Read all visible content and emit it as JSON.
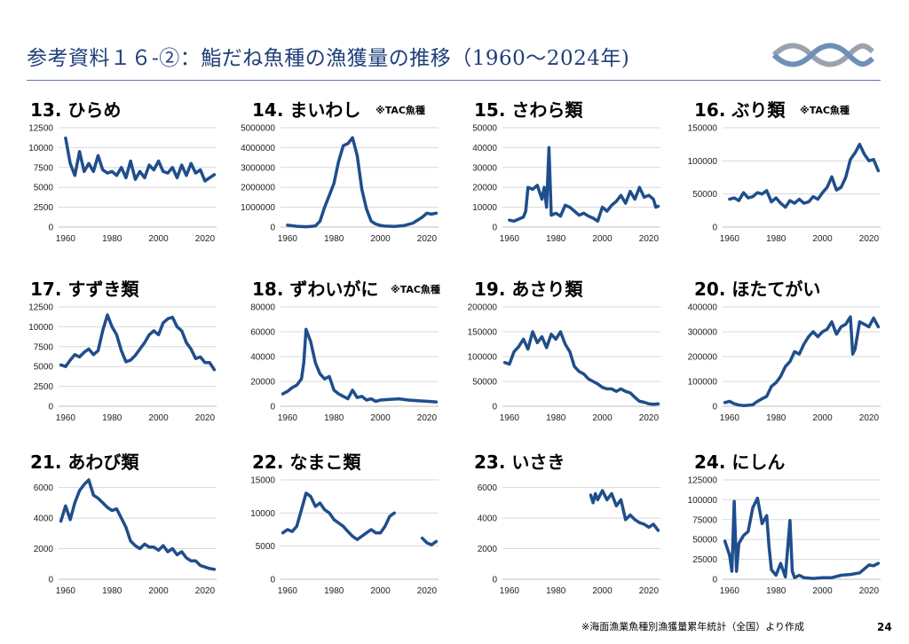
{
  "header": {
    "title": "参考資料１６-②：鮨だね魚種の漁獲量の推移（1960～2024年)",
    "logo": "wave-logo-icon"
  },
  "colors": {
    "line": "#1f4e8c",
    "title": "#1f3f7a",
    "grid": "#d9d9d9"
  },
  "footer": {
    "source": "※海面漁業魚種別漁獲量累年統計（全国）より作成",
    "page": "24"
  },
  "chart_data": [
    {
      "id": "p13",
      "type": "line",
      "title": "13. ひらめ",
      "note": "",
      "xlim": [
        1957,
        2025
      ],
      "ylim": [
        0,
        12500
      ],
      "yticks": [
        0,
        2500,
        5000,
        7500,
        10000,
        12500
      ],
      "xticks": [
        1960,
        1980,
        2000,
        2020
      ],
      "x": [
        1960,
        1962,
        1964,
        1966,
        1968,
        1970,
        1972,
        1974,
        1976,
        1978,
        1980,
        1982,
        1984,
        1986,
        1988,
        1990,
        1992,
        1994,
        1996,
        1998,
        2000,
        2002,
        2004,
        2006,
        2008,
        2010,
        2012,
        2014,
        2016,
        2018,
        2020,
        2022,
        2024
      ],
      "y": [
        11200,
        8000,
        6500,
        9500,
        7000,
        8000,
        7000,
        9000,
        7200,
        6800,
        7000,
        6500,
        7500,
        6200,
        8300,
        6000,
        7000,
        6200,
        7800,
        7200,
        8300,
        7000,
        6800,
        7500,
        6200,
        7800,
        6500,
        8000,
        6800,
        7200,
        5800,
        6200,
        6600
      ]
    },
    {
      "id": "p14",
      "type": "line",
      "title": "14. まいわし",
      "note": "※TAC魚種",
      "xlim": [
        1957,
        2025
      ],
      "ylim": [
        0,
        5000000
      ],
      "yticks": [
        0,
        1000000,
        2000000,
        3000000,
        4000000,
        5000000
      ],
      "xticks": [
        1960,
        1980,
        2000,
        2020
      ],
      "x": [
        1960,
        1964,
        1968,
        1970,
        1972,
        1974,
        1976,
        1978,
        1980,
        1982,
        1984,
        1986,
        1988,
        1990,
        1992,
        1994,
        1996,
        1998,
        2000,
        2002,
        2006,
        2010,
        2014,
        2018,
        2020,
        2022,
        2024
      ],
      "y": [
        100000,
        40000,
        20000,
        30000,
        60000,
        300000,
        1000000,
        1600000,
        2200000,
        3300000,
        4100000,
        4200000,
        4500000,
        3600000,
        1900000,
        900000,
        300000,
        150000,
        80000,
        50000,
        30000,
        70000,
        200000,
        500000,
        700000,
        650000,
        700000
      ]
    },
    {
      "id": "p15",
      "type": "line",
      "title": "15. さわら類",
      "note": "",
      "xlim": [
        1957,
        2025
      ],
      "ylim": [
        0,
        50000
      ],
      "yticks": [
        0,
        10000,
        20000,
        30000,
        40000,
        50000
      ],
      "xticks": [
        1960,
        1980,
        2000,
        2020
      ],
      "x": [
        1960,
        1962,
        1964,
        1966,
        1967,
        1968,
        1970,
        1972,
        1974,
        1975,
        1976,
        1977,
        1978,
        1980,
        1982,
        1984,
        1986,
        1988,
        1990,
        1992,
        1994,
        1996,
        1998,
        2000,
        2002,
        2004,
        2006,
        2008,
        2010,
        2012,
        2014,
        2016,
        2018,
        2020,
        2022,
        2023,
        2024
      ],
      "y": [
        3500,
        3000,
        4000,
        5000,
        8000,
        20000,
        19000,
        21000,
        14000,
        20000,
        10000,
        40000,
        6000,
        7000,
        5500,
        11000,
        10000,
        8000,
        6000,
        7000,
        5500,
        4500,
        3000,
        10000,
        8000,
        11000,
        13000,
        16000,
        12000,
        18000,
        14000,
        20000,
        15000,
        16000,
        14000,
        10000,
        10500
      ]
    },
    {
      "id": "p16",
      "type": "line",
      "title": "16. ぶり類",
      "note": "※TAC魚種",
      "xlim": [
        1957,
        2025
      ],
      "ylim": [
        0,
        150000
      ],
      "yticks": [
        0,
        50000,
        100000,
        150000
      ],
      "xticks": [
        1960,
        1980,
        2000,
        2020
      ],
      "x": [
        1960,
        1962,
        1964,
        1966,
        1968,
        1970,
        1972,
        1974,
        1976,
        1978,
        1980,
        1982,
        1984,
        1986,
        1988,
        1990,
        1992,
        1994,
        1996,
        1998,
        2000,
        2002,
        2004,
        2006,
        2008,
        2010,
        2012,
        2014,
        2016,
        2018,
        2020,
        2022,
        2024
      ],
      "y": [
        42000,
        44000,
        40000,
        52000,
        44000,
        46000,
        52000,
        50000,
        55000,
        38000,
        44000,
        36000,
        30000,
        40000,
        36000,
        42000,
        36000,
        38000,
        46000,
        42000,
        52000,
        60000,
        76000,
        56000,
        60000,
        75000,
        102000,
        112000,
        125000,
        110000,
        100000,
        102000,
        85000
      ]
    },
    {
      "id": "p17",
      "type": "line",
      "title": "17. すずき類",
      "note": "",
      "xlim": [
        1957,
        2025
      ],
      "ylim": [
        0,
        12500
      ],
      "yticks": [
        0,
        2500,
        5000,
        7500,
        10000,
        12500
      ],
      "xticks": [
        1960,
        1980,
        2000,
        2020
      ],
      "x": [
        1958,
        1960,
        1962,
        1964,
        1966,
        1968,
        1970,
        1972,
        1974,
        1976,
        1978,
        1980,
        1982,
        1984,
        1986,
        1988,
        1990,
        1992,
        1994,
        1996,
        1998,
        2000,
        2002,
        2004,
        2006,
        2008,
        2010,
        2012,
        2014,
        2016,
        2018,
        2020,
        2022,
        2024
      ],
      "y": [
        5200,
        5000,
        5800,
        6500,
        6200,
        6800,
        7200,
        6500,
        7000,
        9500,
        11500,
        10000,
        9000,
        7000,
        5600,
        5800,
        6400,
        7200,
        8000,
        9000,
        9500,
        9000,
        10500,
        11000,
        11200,
        10000,
        9500,
        8000,
        7200,
        6000,
        6200,
        5500,
        5500,
        4600
      ]
    },
    {
      "id": "p18",
      "type": "line",
      "title": "18. ずわいがに",
      "note": "※TAC魚種",
      "xlim": [
        1957,
        2025
      ],
      "ylim": [
        0,
        80000
      ],
      "yticks": [
        0,
        20000,
        40000,
        60000,
        80000
      ],
      "xticks": [
        1960,
        1980,
        2000,
        2020
      ],
      "x": [
        1958,
        1960,
        1962,
        1964,
        1966,
        1967,
        1968,
        1970,
        1972,
        1974,
        1976,
        1978,
        1980,
        1982,
        1984,
        1986,
        1988,
        1990,
        1992,
        1994,
        1996,
        1998,
        2000,
        2004,
        2008,
        2012,
        2016,
        2020,
        2024
      ],
      "y": [
        10000,
        12000,
        15000,
        17000,
        22000,
        35000,
        62000,
        52000,
        35000,
        26000,
        22000,
        24000,
        13000,
        10000,
        8000,
        6000,
        13000,
        7000,
        8000,
        5000,
        6000,
        4000,
        5000,
        5500,
        6000,
        5000,
        4500,
        4000,
        3500
      ]
    },
    {
      "id": "p19",
      "type": "line",
      "title": "19. あさり類",
      "note": "",
      "xlim": [
        1957,
        2025
      ],
      "ylim": [
        0,
        200000
      ],
      "yticks": [
        0,
        50000,
        100000,
        150000,
        200000
      ],
      "xticks": [
        1960,
        1980,
        2000,
        2020
      ],
      "x": [
        1958,
        1960,
        1962,
        1964,
        1966,
        1968,
        1970,
        1972,
        1974,
        1976,
        1978,
        1980,
        1982,
        1984,
        1986,
        1988,
        1990,
        1992,
        1994,
        1996,
        1998,
        2000,
        2002,
        2004,
        2006,
        2008,
        2010,
        2012,
        2014,
        2016,
        2018,
        2020,
        2022,
        2024
      ],
      "y": [
        88000,
        85000,
        110000,
        120000,
        135000,
        115000,
        150000,
        128000,
        140000,
        118000,
        145000,
        135000,
        150000,
        125000,
        110000,
        80000,
        70000,
        65000,
        55000,
        50000,
        45000,
        38000,
        35000,
        35000,
        30000,
        35000,
        30000,
        27000,
        18000,
        10000,
        8000,
        5000,
        4000,
        5000
      ]
    },
    {
      "id": "p20",
      "type": "line",
      "title": "20. ほたてがい",
      "note": "",
      "xlim": [
        1957,
        2025
      ],
      "ylim": [
        0,
        400000
      ],
      "yticks": [
        0,
        100000,
        200000,
        300000,
        400000
      ],
      "xticks": [
        1960,
        1980,
        2000,
        2020
      ],
      "x": [
        1958,
        1960,
        1962,
        1964,
        1966,
        1968,
        1970,
        1972,
        1974,
        1976,
        1978,
        1980,
        1982,
        1984,
        1986,
        1988,
        1990,
        1992,
        1994,
        1996,
        1998,
        2000,
        2002,
        2004,
        2006,
        2008,
        2010,
        2012,
        2013,
        2014,
        2016,
        2018,
        2020,
        2022,
        2024
      ],
      "y": [
        15000,
        20000,
        10000,
        5000,
        3000,
        4000,
        6000,
        20000,
        30000,
        40000,
        80000,
        95000,
        120000,
        160000,
        180000,
        220000,
        210000,
        250000,
        280000,
        300000,
        280000,
        300000,
        310000,
        340000,
        290000,
        320000,
        330000,
        360000,
        210000,
        230000,
        340000,
        330000,
        320000,
        355000,
        320000
      ]
    },
    {
      "id": "p21",
      "type": "line",
      "title": "21. あわび類",
      "note": "",
      "xlim": [
        1957,
        2025
      ],
      "ylim": [
        0,
        6500
      ],
      "yticks": [
        0,
        2000,
        4000,
        6000
      ],
      "xticks": [
        1960,
        1980,
        2000,
        2020
      ],
      "x": [
        1958,
        1960,
        1962,
        1964,
        1966,
        1968,
        1970,
        1972,
        1974,
        1976,
        1978,
        1980,
        1982,
        1984,
        1986,
        1988,
        1990,
        1992,
        1994,
        1996,
        1998,
        2000,
        2002,
        2004,
        2006,
        2008,
        2010,
        2012,
        2014,
        2016,
        2018,
        2020,
        2022,
        2024
      ],
      "y": [
        3800,
        4800,
        3900,
        5000,
        5800,
        6200,
        6500,
        5500,
        5300,
        5000,
        4700,
        4500,
        4600,
        4000,
        3400,
        2500,
        2200,
        2000,
        2300,
        2100,
        2100,
        1900,
        2200,
        1800,
        2000,
        1600,
        1800,
        1400,
        1200,
        1200,
        900,
        800,
        700,
        650
      ]
    },
    {
      "id": "p22",
      "type": "line",
      "title": "22. なまこ類",
      "note": "",
      "xlim": [
        1957,
        2025
      ],
      "ylim": [
        0,
        15000
      ],
      "yticks": [
        0,
        5000,
        10000,
        15000
      ],
      "xticks": [
        1960,
        1980,
        2000,
        2020
      ],
      "x": [
        1958,
        1960,
        1962,
        1964,
        1966,
        1968,
        1970,
        1972,
        1974,
        1976,
        1978,
        1980,
        1982,
        1984,
        1986,
        1988,
        1990,
        1992,
        1994,
        1996,
        1998,
        2000,
        2002,
        2004,
        2006,
        null,
        2018,
        2020,
        2022,
        2024
      ],
      "y": [
        7000,
        7500,
        7200,
        8000,
        10500,
        13000,
        12500,
        11000,
        11500,
        10500,
        10000,
        9000,
        8500,
        8000,
        7200,
        6500,
        6000,
        6500,
        7000,
        7500,
        7000,
        7000,
        8000,
        9500,
        10000,
        null,
        6200,
        5500,
        5200,
        5700
      ]
    },
    {
      "id": "p23",
      "type": "line",
      "title": "23. いさき",
      "note": "",
      "xlim": [
        1957,
        2025
      ],
      "ylim": [
        0,
        6500
      ],
      "yticks": [
        0,
        2000,
        4000,
        6000
      ],
      "xticks": [
        1960,
        1980,
        2000,
        2020
      ],
      "x": [
        1995,
        1996,
        1997,
        1998,
        2000,
        2002,
        2004,
        2006,
        2008,
        2010,
        2012,
        2014,
        2016,
        2018,
        2020,
        2022,
        2024
      ],
      "y": [
        5500,
        5000,
        5600,
        5200,
        5800,
        5200,
        5600,
        4800,
        5200,
        3900,
        4200,
        3900,
        3700,
        3600,
        3400,
        3600,
        3200
      ]
    },
    {
      "id": "p24",
      "type": "line",
      "title": "24. にしん",
      "note": "",
      "xlim": [
        1957,
        2025
      ],
      "ylim": [
        0,
        125000
      ],
      "yticks": [
        0,
        25000,
        50000,
        75000,
        100000,
        125000
      ],
      "xticks": [
        1960,
        1980,
        2000,
        2020
      ],
      "x": [
        1958,
        1960,
        1961,
        1962,
        1963,
        1964,
        1966,
        1968,
        1970,
        1972,
        1974,
        1976,
        1977,
        1978,
        1980,
        1982,
        1984,
        1986,
        1987,
        1988,
        1990,
        1992,
        1996,
        2000,
        2004,
        2008,
        2012,
        2016,
        2020,
        2022,
        2024
      ],
      "y": [
        48000,
        30000,
        10000,
        98000,
        10000,
        45000,
        55000,
        60000,
        90000,
        102000,
        70000,
        80000,
        40000,
        12000,
        5000,
        20000,
        3000,
        74000,
        10000,
        2000,
        5000,
        2000,
        1000,
        2000,
        2000,
        5000,
        6000,
        8000,
        18000,
        17000,
        20000
      ]
    }
  ]
}
